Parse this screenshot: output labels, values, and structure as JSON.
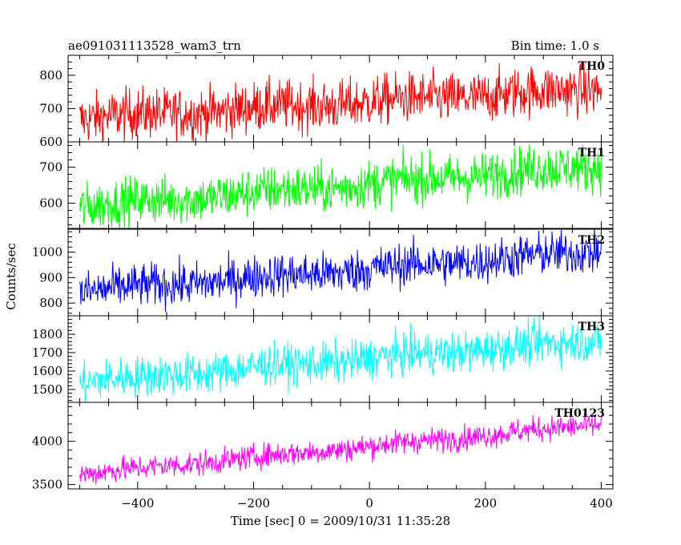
{
  "chart_data": {
    "type": "line",
    "title_left": "ae091031113528_wam3_trn",
    "title_right": "Bin time: 1.0 s",
    "xlabel": "Time [sec] 0 = 2009/10/31 11:35:28",
    "ylabel": "Counts/sec",
    "xlim": [
      -520,
      420
    ],
    "xticks": [
      -400,
      -200,
      0,
      200,
      400
    ],
    "x_range": [
      -500,
      400
    ],
    "bin_time": 1.0,
    "panels": [
      {
        "name": "TH0",
        "color": "#ff0000",
        "ylim": [
          600,
          860
        ],
        "yticks": [
          600,
          700,
          800
        ],
        "trend_start": 670,
        "trend_end": 760,
        "scatter": 38
      },
      {
        "name": "TH1",
        "color": "#00ff00",
        "ylim": [
          530,
          770
        ],
        "yticks": [
          600,
          700
        ],
        "trend_start": 590,
        "trend_end": 705,
        "scatter": 33
      },
      {
        "name": "TH2",
        "color": "#0000ff",
        "ylim": [
          750,
          1090
        ],
        "yticks": [
          800,
          900,
          1000
        ],
        "trend_start": 845,
        "trend_end": 1005,
        "scatter": 42
      },
      {
        "name": "TH3",
        "color": "#00ffff",
        "ylim": [
          1430,
          1900
        ],
        "yticks": [
          1500,
          1600,
          1700,
          1800
        ],
        "trend_start": 1540,
        "trend_end": 1770,
        "scatter": 55
      },
      {
        "name": "TH0123",
        "color": "#ff00ff",
        "ylim": [
          3450,
          4450
        ],
        "yticks": [
          3500,
          4000
        ],
        "trend_start": 3620,
        "trend_end": 4200,
        "scatter": 70
      }
    ]
  }
}
